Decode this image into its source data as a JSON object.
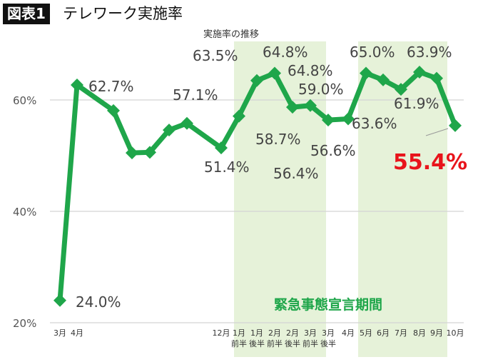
{
  "header": {
    "badge": "図表1",
    "title": "テレワーク実施率"
  },
  "chart_data": {
    "type": "line",
    "title": "実施率の推移",
    "ylim": [
      20,
      70
    ],
    "yticks": [
      "20%",
      "40%",
      "60%"
    ],
    "ytick_values": [
      20,
      40,
      60
    ],
    "grid": true,
    "categories": [
      {
        "month": "3月",
        "half": ""
      },
      {
        "month": "4月",
        "half": ""
      },
      {
        "month": "",
        "half": ""
      },
      {
        "month": "",
        "half": ""
      },
      {
        "month": "",
        "half": ""
      },
      {
        "month": "",
        "half": ""
      },
      {
        "month": "",
        "half": ""
      },
      {
        "month": "12月",
        "half": ""
      },
      {
        "month": "1月",
        "half": "前半"
      },
      {
        "month": "1月",
        "half": "後半"
      },
      {
        "month": "2月",
        "half": "前半"
      },
      {
        "month": "2月",
        "half": "後半"
      },
      {
        "month": "3月",
        "half": "前半"
      },
      {
        "month": "3月",
        "half": "後半"
      },
      {
        "month": "4月",
        "half": ""
      },
      {
        "month": "5月",
        "half": ""
      },
      {
        "month": "6月",
        "half": ""
      },
      {
        "month": "7月",
        "half": ""
      },
      {
        "month": "8月",
        "half": ""
      },
      {
        "month": "9月",
        "half": ""
      },
      {
        "month": "10月",
        "half": ""
      }
    ],
    "values": [
      24.0,
      62.7,
      58.1,
      50.5,
      50.6,
      54.6,
      55.8,
      51.4,
      57.1,
      63.5,
      64.8,
      58.7,
      59.0,
      56.4,
      56.6,
      64.8,
      63.6,
      61.9,
      65.0,
      63.9,
      55.4
    ],
    "data_labels": [
      "24.0%",
      "62.7%",
      "",
      "",
      "",
      "",
      "",
      "51.4%",
      "57.1%",
      "63.5%",
      "64.8%",
      "58.7%",
      "59.0%",
      "56.4%",
      "56.6%",
      "64.8%",
      "63.6%",
      "61.9%",
      "65.0%",
      "63.9%",
      "55.4%"
    ],
    "highlight_label": "55.4%",
    "shaded_periods": [
      {
        "from": "1月前半",
        "to": "3月後半"
      },
      {
        "from": "5月",
        "to": "9月"
      }
    ],
    "shaded_label": "緊急事態宣言期間",
    "colors": {
      "line": "#1fa64a",
      "shade": "#e6f2d9",
      "highlight": "#e8141b",
      "shaded_label": "#1fa64a"
    }
  }
}
